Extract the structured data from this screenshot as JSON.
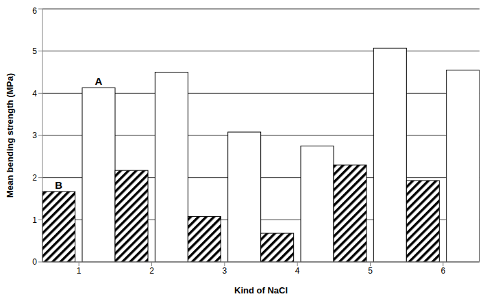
{
  "chart_data": {
    "type": "bar",
    "x_label": "Kind of NaCl",
    "y_label": "Mean bending strength (MPa)",
    "categories": [
      "1",
      "2",
      "3",
      "4",
      "5",
      "6"
    ],
    "series": [
      {
        "name": "A",
        "color": "#ffffff",
        "values": [
          4.13,
          4.5,
          3.08,
          2.75,
          5.07,
          4.55
        ]
      },
      {
        "name": "B",
        "color": "#000000",
        "values": [
          1.67,
          2.17,
          1.08,
          0.68,
          2.3,
          1.93
        ]
      }
    ],
    "ylim": [
      0,
      6
    ],
    "yticks": [
      0,
      1,
      2,
      3,
      4,
      5,
      6
    ],
    "grid": true
  }
}
